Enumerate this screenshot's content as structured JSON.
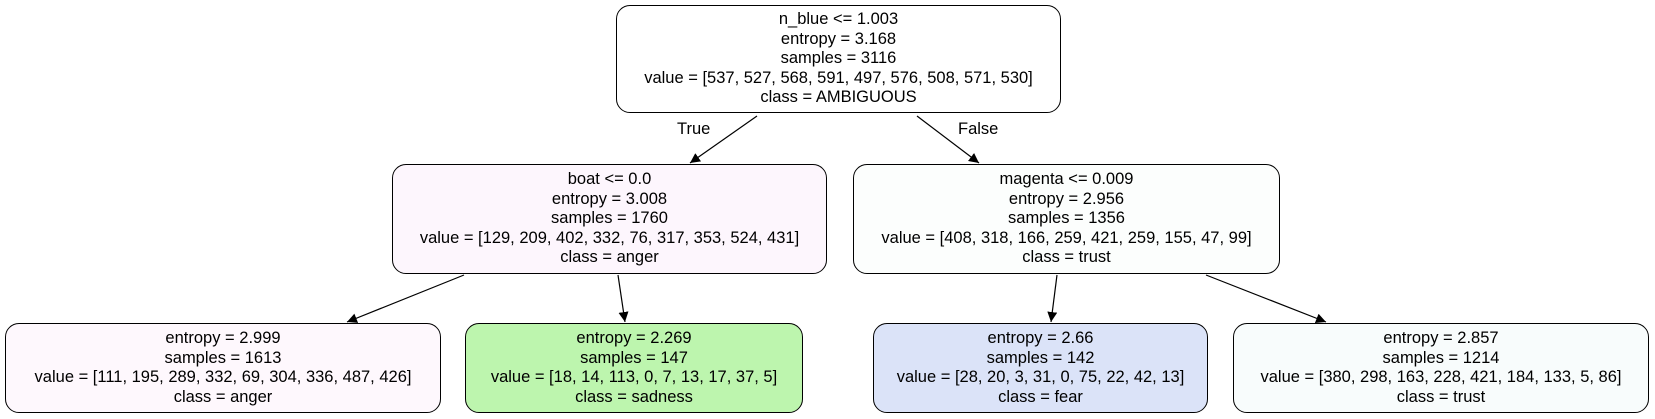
{
  "nodes": {
    "root": {
      "split": "n_blue <= 1.003",
      "entropy": "entropy = 3.168",
      "samples": "samples = 3116",
      "value": "value = [537, 527, 568, 591, 497, 576, 508, 571, 530]",
      "class": "class = AMBIGUOUS",
      "fill": "#ffffff"
    },
    "left": {
      "split": "boat <= 0.0",
      "entropy": "entropy = 3.008",
      "samples": "samples = 1760",
      "value": "value = [129, 209, 402, 332, 76, 317, 353, 524, 431]",
      "class": "class = anger",
      "fill": "#fdf6fd"
    },
    "right": {
      "split": "magenta <= 0.009",
      "entropy": "entropy = 2.956",
      "samples": "samples = 1356",
      "value": "value = [408, 318, 166, 259, 421, 259, 155, 47, 99]",
      "class": "class = trust",
      "fill": "#fcfefd"
    },
    "ll": {
      "entropy": "entropy = 2.999",
      "samples": "samples = 1613",
      "value": "value = [111, 195, 289, 332, 69, 304, 336, 487, 426]",
      "class": "class = anger",
      "fill": "#fef8fd"
    },
    "lr": {
      "entropy": "entropy = 2.269",
      "samples": "samples = 147",
      "value": "value = [18, 14, 113, 0, 7, 13, 17, 37, 5]",
      "class": "class = sadness",
      "fill": "#bdf5ae"
    },
    "rl": {
      "entropy": "entropy = 2.66",
      "samples": "samples = 142",
      "value": "value = [28, 20, 3, 31, 0, 75, 22, 42, 13]",
      "class": "class = fear",
      "fill": "#dbe3f8"
    },
    "rr": {
      "entropy": "entropy = 2.857",
      "samples": "samples = 1214",
      "value": "value = [380, 298, 163, 228, 421, 184, 133, 5, 86]",
      "class": "class = trust",
      "fill": "#f8fcfc"
    }
  },
  "edge_labels": {
    "true_label": "True",
    "false_label": "False"
  }
}
